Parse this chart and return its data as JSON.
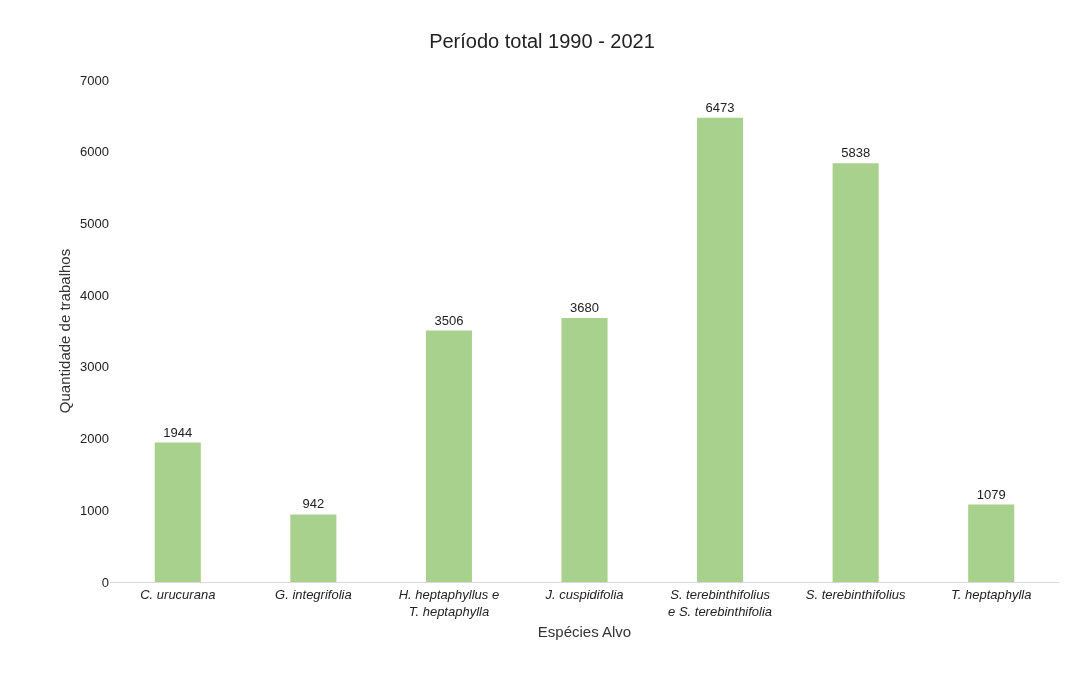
{
  "chart_data": {
    "type": "bar",
    "title": "Período total 1990 - 2021",
    "xlabel": "Espécies Alvo",
    "ylabel": "Quantidade de trabalhos",
    "categories": [
      "C. urucurana",
      "G. integrifolia",
      "H. heptaphyllus e\nT. heptaphylla",
      "J. cuspidifolia",
      "S. terebinthifolius\ne S. terebinthifolia",
      "S. terebinthifolius",
      "T. heptaphylla"
    ],
    "values": [
      1944,
      942,
      3506,
      3680,
      6473,
      5838,
      1079
    ],
    "color": "#a9d18e",
    "ylim": [
      0,
      7000
    ],
    "yticks": [
      0,
      1000,
      2000,
      3000,
      4000,
      5000,
      6000,
      7000
    ],
    "grid": false,
    "legend": false,
    "data_labels": true
  }
}
